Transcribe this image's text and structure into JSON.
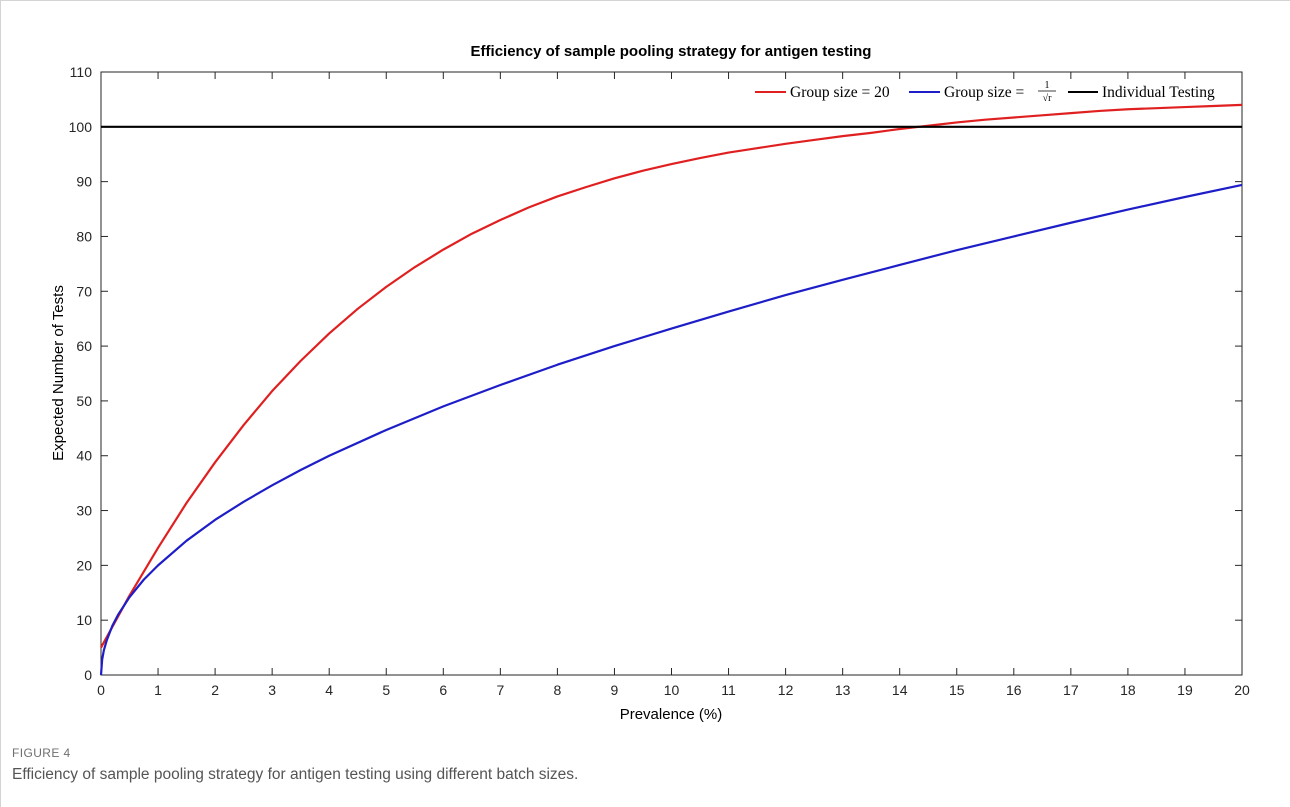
{
  "chart_data": {
    "type": "line",
    "title": "Efficiency of sample pooling strategy for antigen testing",
    "xlabel": "Prevalence (%)",
    "ylabel": "Expected Number of Tests",
    "xlim": [
      0,
      20
    ],
    "ylim": [
      0,
      110
    ],
    "x_ticks": [
      0,
      1,
      2,
      3,
      4,
      5,
      6,
      7,
      8,
      9,
      10,
      11,
      12,
      13,
      14,
      15,
      16,
      17,
      18,
      19,
      20
    ],
    "y_ticks": [
      0,
      10,
      20,
      30,
      40,
      50,
      60,
      70,
      80,
      90,
      100,
      110
    ],
    "grid": false,
    "legend_position": "top-right",
    "series": [
      {
        "name": "Group size = 20",
        "color": "#e02020",
        "x": [
          0,
          0.5,
          1,
          1.5,
          2,
          2.5,
          3,
          3.5,
          4,
          4.5,
          5,
          5.5,
          6,
          6.5,
          7,
          7.5,
          8,
          8.5,
          9,
          9.5,
          10,
          10.5,
          11,
          11.5,
          12,
          12.5,
          13,
          13.5,
          14,
          14.5,
          15,
          15.5,
          16,
          16.5,
          17,
          17.5,
          18,
          18.5,
          19,
          19.5,
          20
        ],
        "y": [
          5.0,
          14.5,
          23.2,
          31.4,
          38.8,
          45.6,
          51.8,
          57.3,
          62.3,
          66.8,
          70.8,
          74.4,
          77.6,
          80.5,
          83.0,
          85.3,
          87.3,
          89.0,
          90.6,
          92.0,
          93.2,
          94.3,
          95.3,
          96.1,
          96.9,
          97.6,
          98.3,
          98.9,
          99.6,
          100.2,
          100.8,
          101.3,
          101.7,
          102.1,
          102.5,
          102.9,
          103.2,
          103.4,
          103.6,
          103.8,
          104.0
        ]
      },
      {
        "name": "Group size = 1/√r",
        "color": "#1e1ec8",
        "x": [
          0,
          0.02,
          0.05,
          0.1,
          0.2,
          0.3,
          0.5,
          0.75,
          1,
          1.5,
          2,
          2.5,
          3,
          3.5,
          4,
          5,
          6,
          7,
          8,
          9,
          10,
          11,
          12,
          13,
          14,
          15,
          16,
          17,
          18,
          19,
          20
        ],
        "y": [
          0.0,
          2.8,
          4.5,
          6.3,
          9.0,
          11.0,
          14.2,
          17.4,
          20.0,
          24.5,
          28.3,
          31.6,
          34.6,
          37.4,
          40.0,
          44.7,
          49.0,
          52.9,
          56.6,
          60.0,
          63.2,
          66.3,
          69.3,
          72.1,
          74.8,
          77.5,
          80.0,
          82.5,
          84.9,
          87.2,
          89.4
        ]
      },
      {
        "name": "Individual Testing",
        "color": "#000000",
        "x": [
          0,
          20
        ],
        "y": [
          100,
          100
        ]
      }
    ]
  },
  "legend": {
    "red_label": "Group size = 20",
    "blue_label_prefix": "Group size =",
    "blue_label_numer": "1",
    "blue_label_denom": "√r",
    "black_label": "Individual Testing"
  },
  "caption": {
    "label": "FIGURE 4",
    "text": "Efficiency of sample pooling strategy for antigen testing using different batch sizes."
  }
}
